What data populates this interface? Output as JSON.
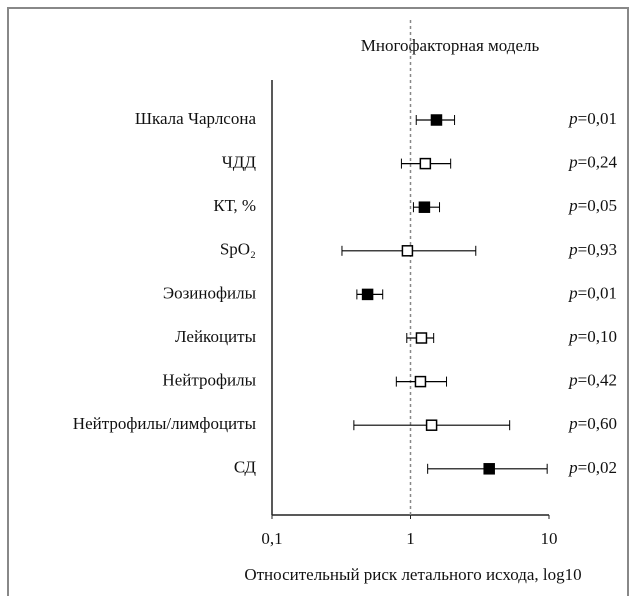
{
  "chart_data": {
    "type": "forest",
    "title": "Многофакторная модель",
    "x_label": "Относительный риск летального исхода, log10",
    "x_scale": "log",
    "xlim": [
      0.1,
      10
    ],
    "xticks": [
      {
        "value": 0.1,
        "label": "0,1"
      },
      1,
      10
    ],
    "reference_line": 1,
    "color": "#000000",
    "categories": [
      "Шкала Чарлсона",
      "ЧДД",
      "КТ, %",
      "SpO₂",
      "Эозинофилы",
      "Лейкоциты",
      "Нейтрофилы",
      "Нейтрофилы/лимфоциты",
      "СД"
    ],
    "values": [
      1.54,
      1.28,
      1.26,
      0.95,
      0.49,
      1.2,
      1.18,
      1.42,
      3.7
    ],
    "lower": [
      1.1,
      0.86,
      1.05,
      0.32,
      0.41,
      0.94,
      0.79,
      0.39,
      1.33
    ],
    "upper": [
      2.08,
      1.95,
      1.62,
      2.96,
      0.63,
      1.47,
      1.82,
      5.2,
      9.7
    ],
    "filled": [
      true,
      false,
      true,
      false,
      true,
      false,
      false,
      false,
      true
    ],
    "p_labels": [
      "p=0,01",
      "p=0,24",
      "p=0,05",
      "p=0,93",
      "p=0,01",
      "p=0,10",
      "p=0,42",
      "p=0,60",
      "p=0,02"
    ]
  }
}
